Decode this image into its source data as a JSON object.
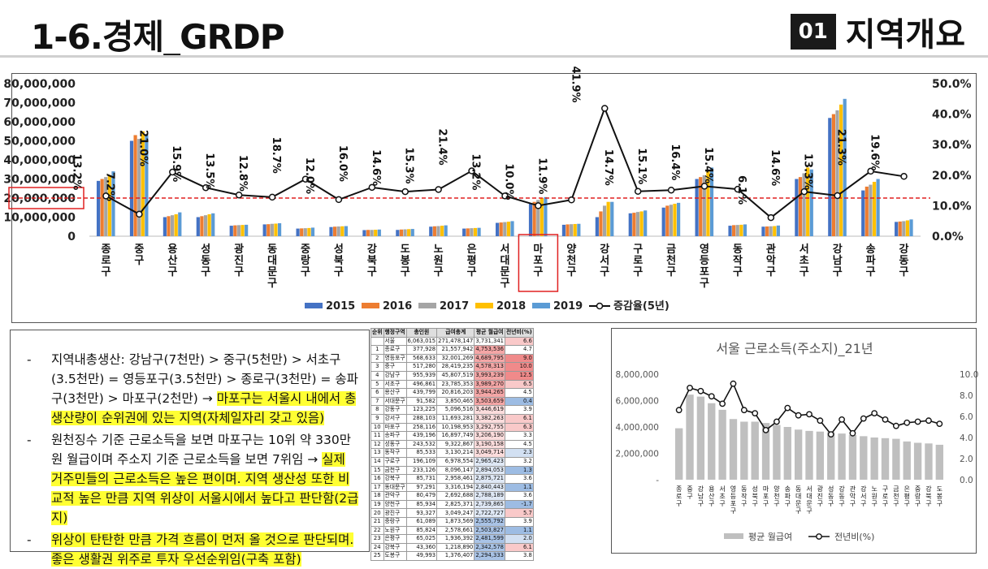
{
  "header": {
    "title": "1-6.경제_GRDP",
    "section_number": "01",
    "section_title": "지역개요"
  },
  "chart_data": [
    {
      "type": "bar",
      "title": "",
      "categories": [
        "종로구",
        "중구",
        "용산구",
        "성동구",
        "광진구",
        "동대문구",
        "중랑구",
        "성북구",
        "강북구",
        "도봉구",
        "노원구",
        "은평구",
        "서대문구",
        "마포구",
        "양천구",
        "강서구",
        "구로구",
        "금천구",
        "영등포구",
        "동작구",
        "관악구",
        "서초구",
        "강남구",
        "송파구",
        "강동구"
      ],
      "series": [
        {
          "name": "2015",
          "color": "#4472c4",
          "values": [
            29000000,
            50000000,
            10000000,
            10000000,
            5500000,
            6200000,
            4000000,
            4800000,
            3200000,
            3300000,
            5000000,
            4000000,
            7000000,
            17000000,
            6000000,
            10000000,
            12000000,
            15000000,
            30000000,
            5500000,
            5000000,
            30000000,
            62000000,
            24000000,
            7500000
          ]
        },
        {
          "name": "2016",
          "color": "#ed7d31",
          "values": [
            30000000,
            53000000,
            10500000,
            10500000,
            5700000,
            6300000,
            4100000,
            5000000,
            3300000,
            3500000,
            5200000,
            4100000,
            7200000,
            18000000,
            6200000,
            13000000,
            12300000,
            16000000,
            31000000,
            5800000,
            5100000,
            31000000,
            64000000,
            26000000,
            7700000
          ]
        },
        {
          "name": "2017",
          "color": "#a5a5a5",
          "values": [
            31000000,
            51000000,
            11000000,
            11000000,
            5800000,
            6500000,
            4200000,
            5100000,
            3300000,
            3600000,
            5300000,
            4200000,
            7400000,
            19000000,
            6300000,
            16000000,
            12700000,
            16500000,
            32000000,
            5900000,
            5200000,
            33000000,
            66000000,
            27000000,
            7900000
          ]
        },
        {
          "name": "2018",
          "color": "#ffc000",
          "values": [
            32000000,
            55000000,
            11500000,
            11500000,
            5900000,
            6600000,
            4300000,
            5200000,
            3400000,
            3700000,
            5500000,
            4300000,
            7600000,
            20000000,
            6400000,
            18000000,
            13000000,
            17000000,
            34000000,
            6000000,
            5300000,
            36000000,
            69000000,
            28500000,
            8300000
          ]
        },
        {
          "name": "2019",
          "color": "#5b9bd5",
          "values": [
            34000000,
            53000000,
            12500000,
            12000000,
            6000000,
            6800000,
            4500000,
            5300000,
            3500000,
            3800000,
            5700000,
            4400000,
            7900000,
            20500000,
            6500000,
            18000000,
            13500000,
            17500000,
            36000000,
            6200000,
            5600000,
            35000000,
            72000000,
            30000000,
            8800000
          ]
        }
      ],
      "line": {
        "name": "증감율(5년)",
        "values": [
          13.2,
          7.2,
          21.0,
          15.9,
          13.5,
          12.8,
          18.7,
          12.0,
          16.0,
          14.6,
          15.3,
          21.4,
          13.2,
          10.0,
          11.9,
          41.9,
          14.7,
          15.1,
          16.4,
          15.4,
          6.1,
          14.6,
          13.3,
          21.3,
          19.6
        ],
        "labels": [
          "13.2%",
          "7.2%",
          "21.0%",
          "15.9%",
          "13.5%",
          "12.8%",
          "18.7%",
          "12.0%",
          "16.0%",
          "14.6%",
          "15.3%",
          "21.4%",
          "13.2%",
          "10.0%",
          "11.9%",
          "41.9%",
          "14.7%",
          "15.1%",
          "16.4%",
          "15.4%",
          "6.1%",
          "14.6%",
          "13.3%",
          "21.3%",
          "19.6%"
        ]
      },
      "y_ticks": [
        "80,000,000",
        "70,000,000",
        "60,000,000",
        "50,000,000",
        "40,000,000",
        "30,000,000",
        "20,000,000",
        "10,000,000",
        "0"
      ],
      "y2_ticks": [
        "50.0%",
        "40.0%",
        "30.0%",
        "20.0%",
        "10.0%",
        "0.0%"
      ],
      "ylim": [
        0,
        80000000
      ],
      "y2lim": [
        0,
        50
      ],
      "reference_value": 20000000,
      "reference_color": "#e02020",
      "highlight_category": "마포구",
      "legend_position": "bottom"
    },
    {
      "type": "bar",
      "title": "서울 근로소득(주소지)_21년",
      "categories": [
        "종로구",
        "중구",
        "강남구",
        "용산구",
        "서초구",
        "영등포구",
        "동작구",
        "성북구",
        "마포구",
        "양천구",
        "송파구",
        "동대문구",
        "서대문구",
        "광진구",
        "성동구",
        "강동구",
        "관악구",
        "강서구",
        "노원구",
        "구로구",
        "금천구",
        "은평구",
        "중랑구",
        "강북구",
        "도봉구"
      ],
      "series": [
        {
          "name": "평균 월급여",
          "color": "#bfbfbf",
          "values": [
            3900000,
            6450000,
            6300000,
            5800000,
            5300000,
            4600000,
            4400000,
            4400000,
            4300000,
            4150000,
            4000000,
            3800000,
            3700000,
            3650000,
            3600000,
            3500000,
            3400000,
            3300000,
            3200000,
            3150000,
            3100000,
            2900000,
            2800000,
            2750000,
            2650000
          ]
        }
      ],
      "line": {
        "name": "전년비(%)",
        "values": [
          6.6,
          8.7,
          8.4,
          7.9,
          7.2,
          9.1,
          6.6,
          6.3,
          4.7,
          5.5,
          6.8,
          6.1,
          6.2,
          5.6,
          4.3,
          5.7,
          4.4,
          5.8,
          6.3,
          5.7,
          5.1,
          5.4,
          5.5,
          5.6,
          5.3
        ]
      },
      "y_ticks": [
        "8,000,000",
        "6,000,000",
        "4,000,000",
        "2,000,000",
        "-"
      ],
      "y2_ticks": [
        "10.0",
        "8.0",
        "6.0",
        "4.0",
        "2.0",
        "0.0"
      ],
      "ylim": [
        0,
        8000000
      ],
      "y2lim": [
        0,
        10
      ],
      "legend_position": "bottom"
    }
  ],
  "bullets": [
    {
      "plain": "지역내총생산: 강남구(7천만) > 중구(5천만) > 서초구(3.5천만) = 영등포구(3.5천만) > 종로구(3천만) = 송파구(3천만) > 마포구(2천만) → ",
      "highlight": "마포구는 서울시 내에서 총생산량이 순위권에 있는 지역(자체일자리 갖고 있음)"
    },
    {
      "plain": "원천징수 기준 근로소득을 보면 마포구는 10위 약 330만원 월급이며 주소지 기준 근로소득을 보면 7위임 → ",
      "highlight": "실제 거주민들의 근로소득은 높은 편이며. 지역 생산성 또한 비교적 높은 만큼 지역 위상이 서울시에서 높다고 판단함(2급지)"
    },
    {
      "plain": "",
      "highlight": "위상이 탄탄한 만큼 가격 흐름이 먼저 올 것으로 판단되며. 좋은 생활권 위주로 투자 우선순위임(구축 포함)"
    }
  ],
  "table": {
    "headers": [
      "순위",
      "행정구역",
      "총인원",
      "급여총계",
      "평균 월급여",
      "전년비(%)"
    ],
    "rows": [
      [
        "",
        "서울",
        "6,063,015",
        "271,478,147",
        "3,731,341",
        "6.6"
      ],
      [
        "1",
        "종로구",
        "377,928",
        "21,557,942",
        "4,753,536",
        "4.7"
      ],
      [
        "2",
        "영등포구",
        "568,633",
        "32,001,269",
        "4,689,795",
        "9.0"
      ],
      [
        "3",
        "중구",
        "517,280",
        "28,419,235",
        "4,578,313",
        "10.0"
      ],
      [
        "4",
        "강남구",
        "955,939",
        "45,807,519",
        "3,993,239",
        "12.5"
      ],
      [
        "5",
        "서초구",
        "496,861",
        "23,785,353",
        "3,989,270",
        "6.5"
      ],
      [
        "6",
        "용산구",
        "439,799",
        "20,816,203",
        "3,944,265",
        "4.5"
      ],
      [
        "7",
        "서대문구",
        "91,582",
        "3,850,465",
        "3,503,659",
        "0.4"
      ],
      [
        "8",
        "강동구",
        "123,225",
        "5,096,516",
        "3,446,619",
        "3.9"
      ],
      [
        "9",
        "강서구",
        "288,103",
        "11,693,281",
        "3,382,263",
        "6.1"
      ],
      [
        "10",
        "마포구",
        "258,116",
        "10,198,953",
        "3,292,755",
        "6.3"
      ],
      [
        "11",
        "송파구",
        "439,196",
        "16,897,749",
        "3,206,190",
        "3.3"
      ],
      [
        "12",
        "성동구",
        "243,532",
        "9,322,867",
        "3,190,158",
        "4.5"
      ],
      [
        "13",
        "동작구",
        "85,533",
        "3,130,214",
        "3,049,714",
        "2.3"
      ],
      [
        "14",
        "구로구",
        "196,109",
        "6,978,554",
        "2,965,423",
        "3.2"
      ],
      [
        "15",
        "금천구",
        "233,126",
        "8,096,147",
        "2,894,053",
        "1.3"
      ],
      [
        "16",
        "강북구",
        "85,731",
        "2,958,461",
        "2,875,721",
        "3.6"
      ],
      [
        "17",
        "동대문구",
        "97,291",
        "3,316,194",
        "2,840,443",
        "1.1"
      ],
      [
        "18",
        "관악구",
        "80,479",
        "2,692,688",
        "2,788,189",
        "3.6"
      ],
      [
        "19",
        "양천구",
        "85,934",
        "2,825,371",
        "2,739,865",
        "-1.7"
      ],
      [
        "20",
        "광진구",
        "93,327",
        "3,049,247",
        "2,722,727",
        "5.7"
      ],
      [
        "21",
        "중랑구",
        "61,089",
        "1,873,569",
        "2,555,792",
        "3.9"
      ],
      [
        "22",
        "노원구",
        "85,824",
        "2,578,661",
        "2,503,827",
        "1.1"
      ],
      [
        "23",
        "은평구",
        "65,025",
        "1,936,392",
        "2,481,599",
        "2.0"
      ],
      [
        "24",
        "강북구",
        "43,360",
        "1,218,890",
        "2,342,578",
        "6.1"
      ],
      [
        "25",
        "도봉구",
        "49,993",
        "1,376,407",
        "2,294,333",
        "3.8"
      ]
    ]
  }
}
